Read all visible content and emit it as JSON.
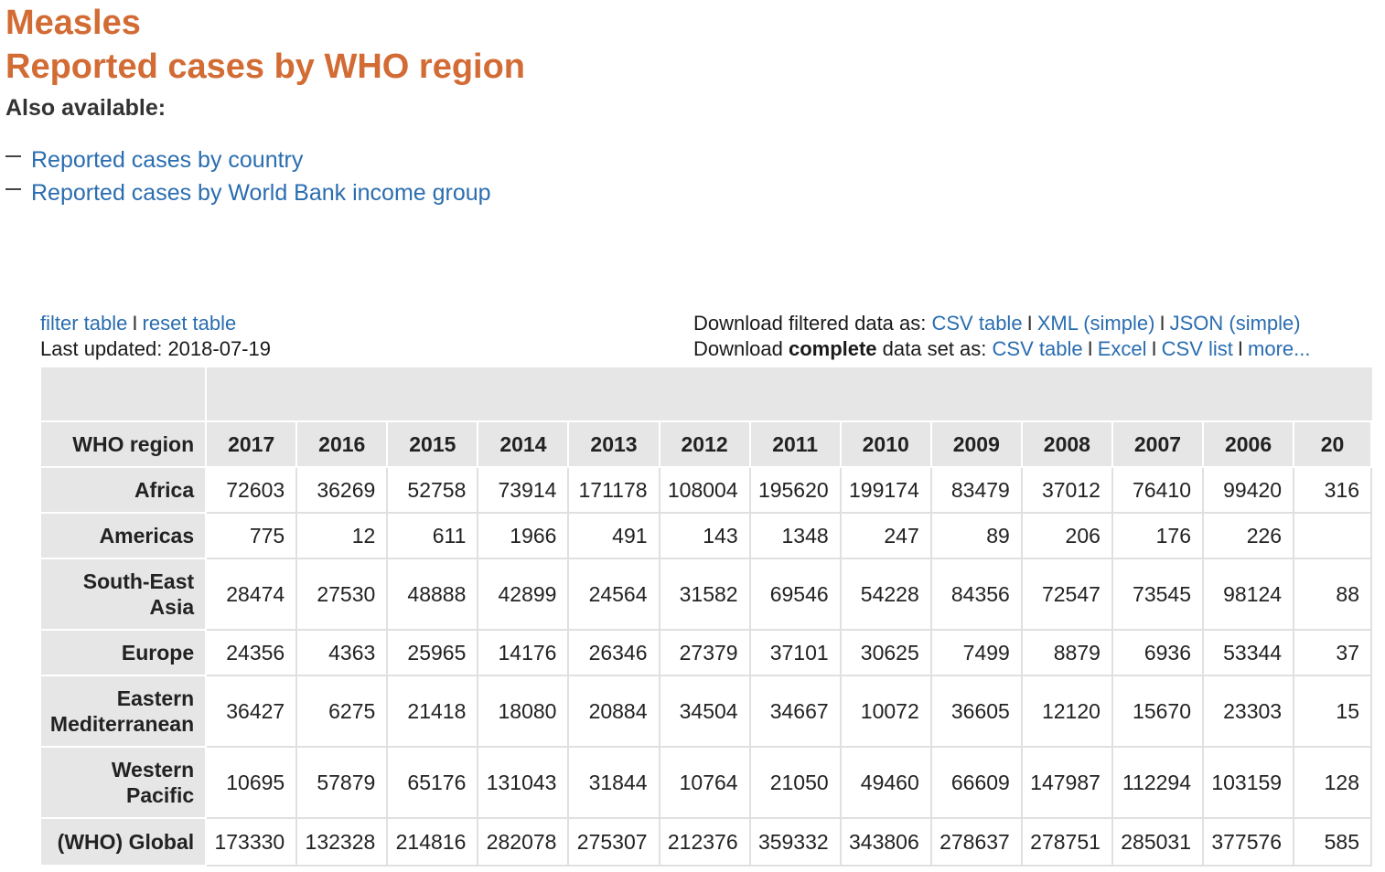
{
  "header": {
    "title": "Measles",
    "subtitle": "Reported cases by WHO region",
    "also_available": "Also available:",
    "links": [
      "Reported cases by country",
      "Reported cases by World Bank income group"
    ]
  },
  "toolbar": {
    "filter_table": "filter table",
    "reset_table": "reset table",
    "separator": "I",
    "last_updated": "Last updated: 2018-07-19",
    "download_filtered_prefix": "Download filtered data as:",
    "filtered_links": [
      "CSV table",
      "XML (simple)",
      "JSON (simple)"
    ],
    "download_complete_prefix": "Download ",
    "download_complete_bold": "complete",
    "download_complete_suffix": " data set as:",
    "complete_links": [
      "CSV table",
      "Excel",
      "CSV list",
      "more..."
    ]
  },
  "table": {
    "row_header_label": "WHO region",
    "years": [
      "2017",
      "2016",
      "2015",
      "2014",
      "2013",
      "2012",
      "2011",
      "2010",
      "2009",
      "2008",
      "2007",
      "2006",
      "20"
    ],
    "rows": [
      {
        "region": "Africa",
        "values": [
          "72603",
          "36269",
          "52758",
          "73914",
          "171178",
          "108004",
          "195620",
          "199174",
          "83479",
          "37012",
          "76410",
          "99420",
          "316"
        ]
      },
      {
        "region": "Americas",
        "values": [
          "775",
          "12",
          "611",
          "1966",
          "491",
          "143",
          "1348",
          "247",
          "89",
          "206",
          "176",
          "226",
          ""
        ]
      },
      {
        "region": "South-East Asia",
        "values": [
          "28474",
          "27530",
          "48888",
          "42899",
          "24564",
          "31582",
          "69546",
          "54228",
          "84356",
          "72547",
          "73545",
          "98124",
          "88"
        ]
      },
      {
        "region": "Europe",
        "values": [
          "24356",
          "4363",
          "25965",
          "14176",
          "26346",
          "27379",
          "37101",
          "30625",
          "7499",
          "8879",
          "6936",
          "53344",
          "37"
        ]
      },
      {
        "region": "Eastern Mediterranean",
        "values": [
          "36427",
          "6275",
          "21418",
          "18080",
          "20884",
          "34504",
          "34667",
          "10072",
          "36605",
          "12120",
          "15670",
          "23303",
          "15"
        ]
      },
      {
        "region": "Western Pacific",
        "values": [
          "10695",
          "57879",
          "65176",
          "131043",
          "31844",
          "10764",
          "21050",
          "49460",
          "66609",
          "147987",
          "112294",
          "103159",
          "128"
        ]
      },
      {
        "region": "(WHO) Global",
        "values": [
          "173330",
          "132328",
          "214816",
          "282078",
          "275307",
          "212376",
          "359332",
          "343806",
          "278637",
          "278751",
          "285031",
          "377576",
          "585"
        ]
      }
    ]
  },
  "colors": {
    "title": "#d26b34",
    "link": "#2a6db0",
    "header_bg": "#e6e6e6"
  }
}
